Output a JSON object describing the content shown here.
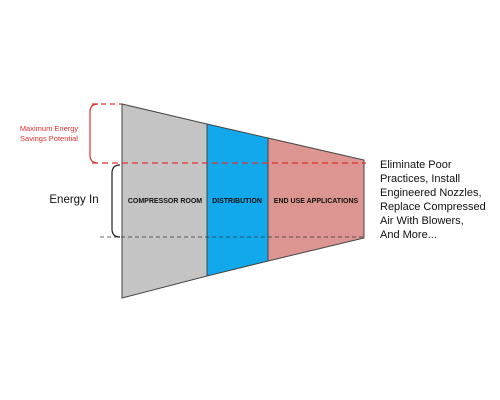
{
  "segments": [
    {
      "label": "COMPRESSOR ROOM",
      "fill": "#c4c4c4"
    },
    {
      "label": "DISTRIBUTION",
      "fill": "#12a8ec"
    },
    {
      "label": "END USE APPLICATIONS",
      "fill": "#dc9590"
    }
  ],
  "savings": {
    "line1": "Maximum Energy",
    "line2": "Savings Potential",
    "color": "#e03030"
  },
  "energy_in": {
    "label": "Energy In"
  },
  "note": {
    "lines": [
      "Eliminate Poor",
      "Practices, Install",
      "Engineered Nozzles,",
      "Replace Compressed",
      "Air With Blowers,",
      "And More..."
    ]
  },
  "colors": {
    "outline": "#444444",
    "bracket": "#222222",
    "dashed_black": "#333333"
  }
}
